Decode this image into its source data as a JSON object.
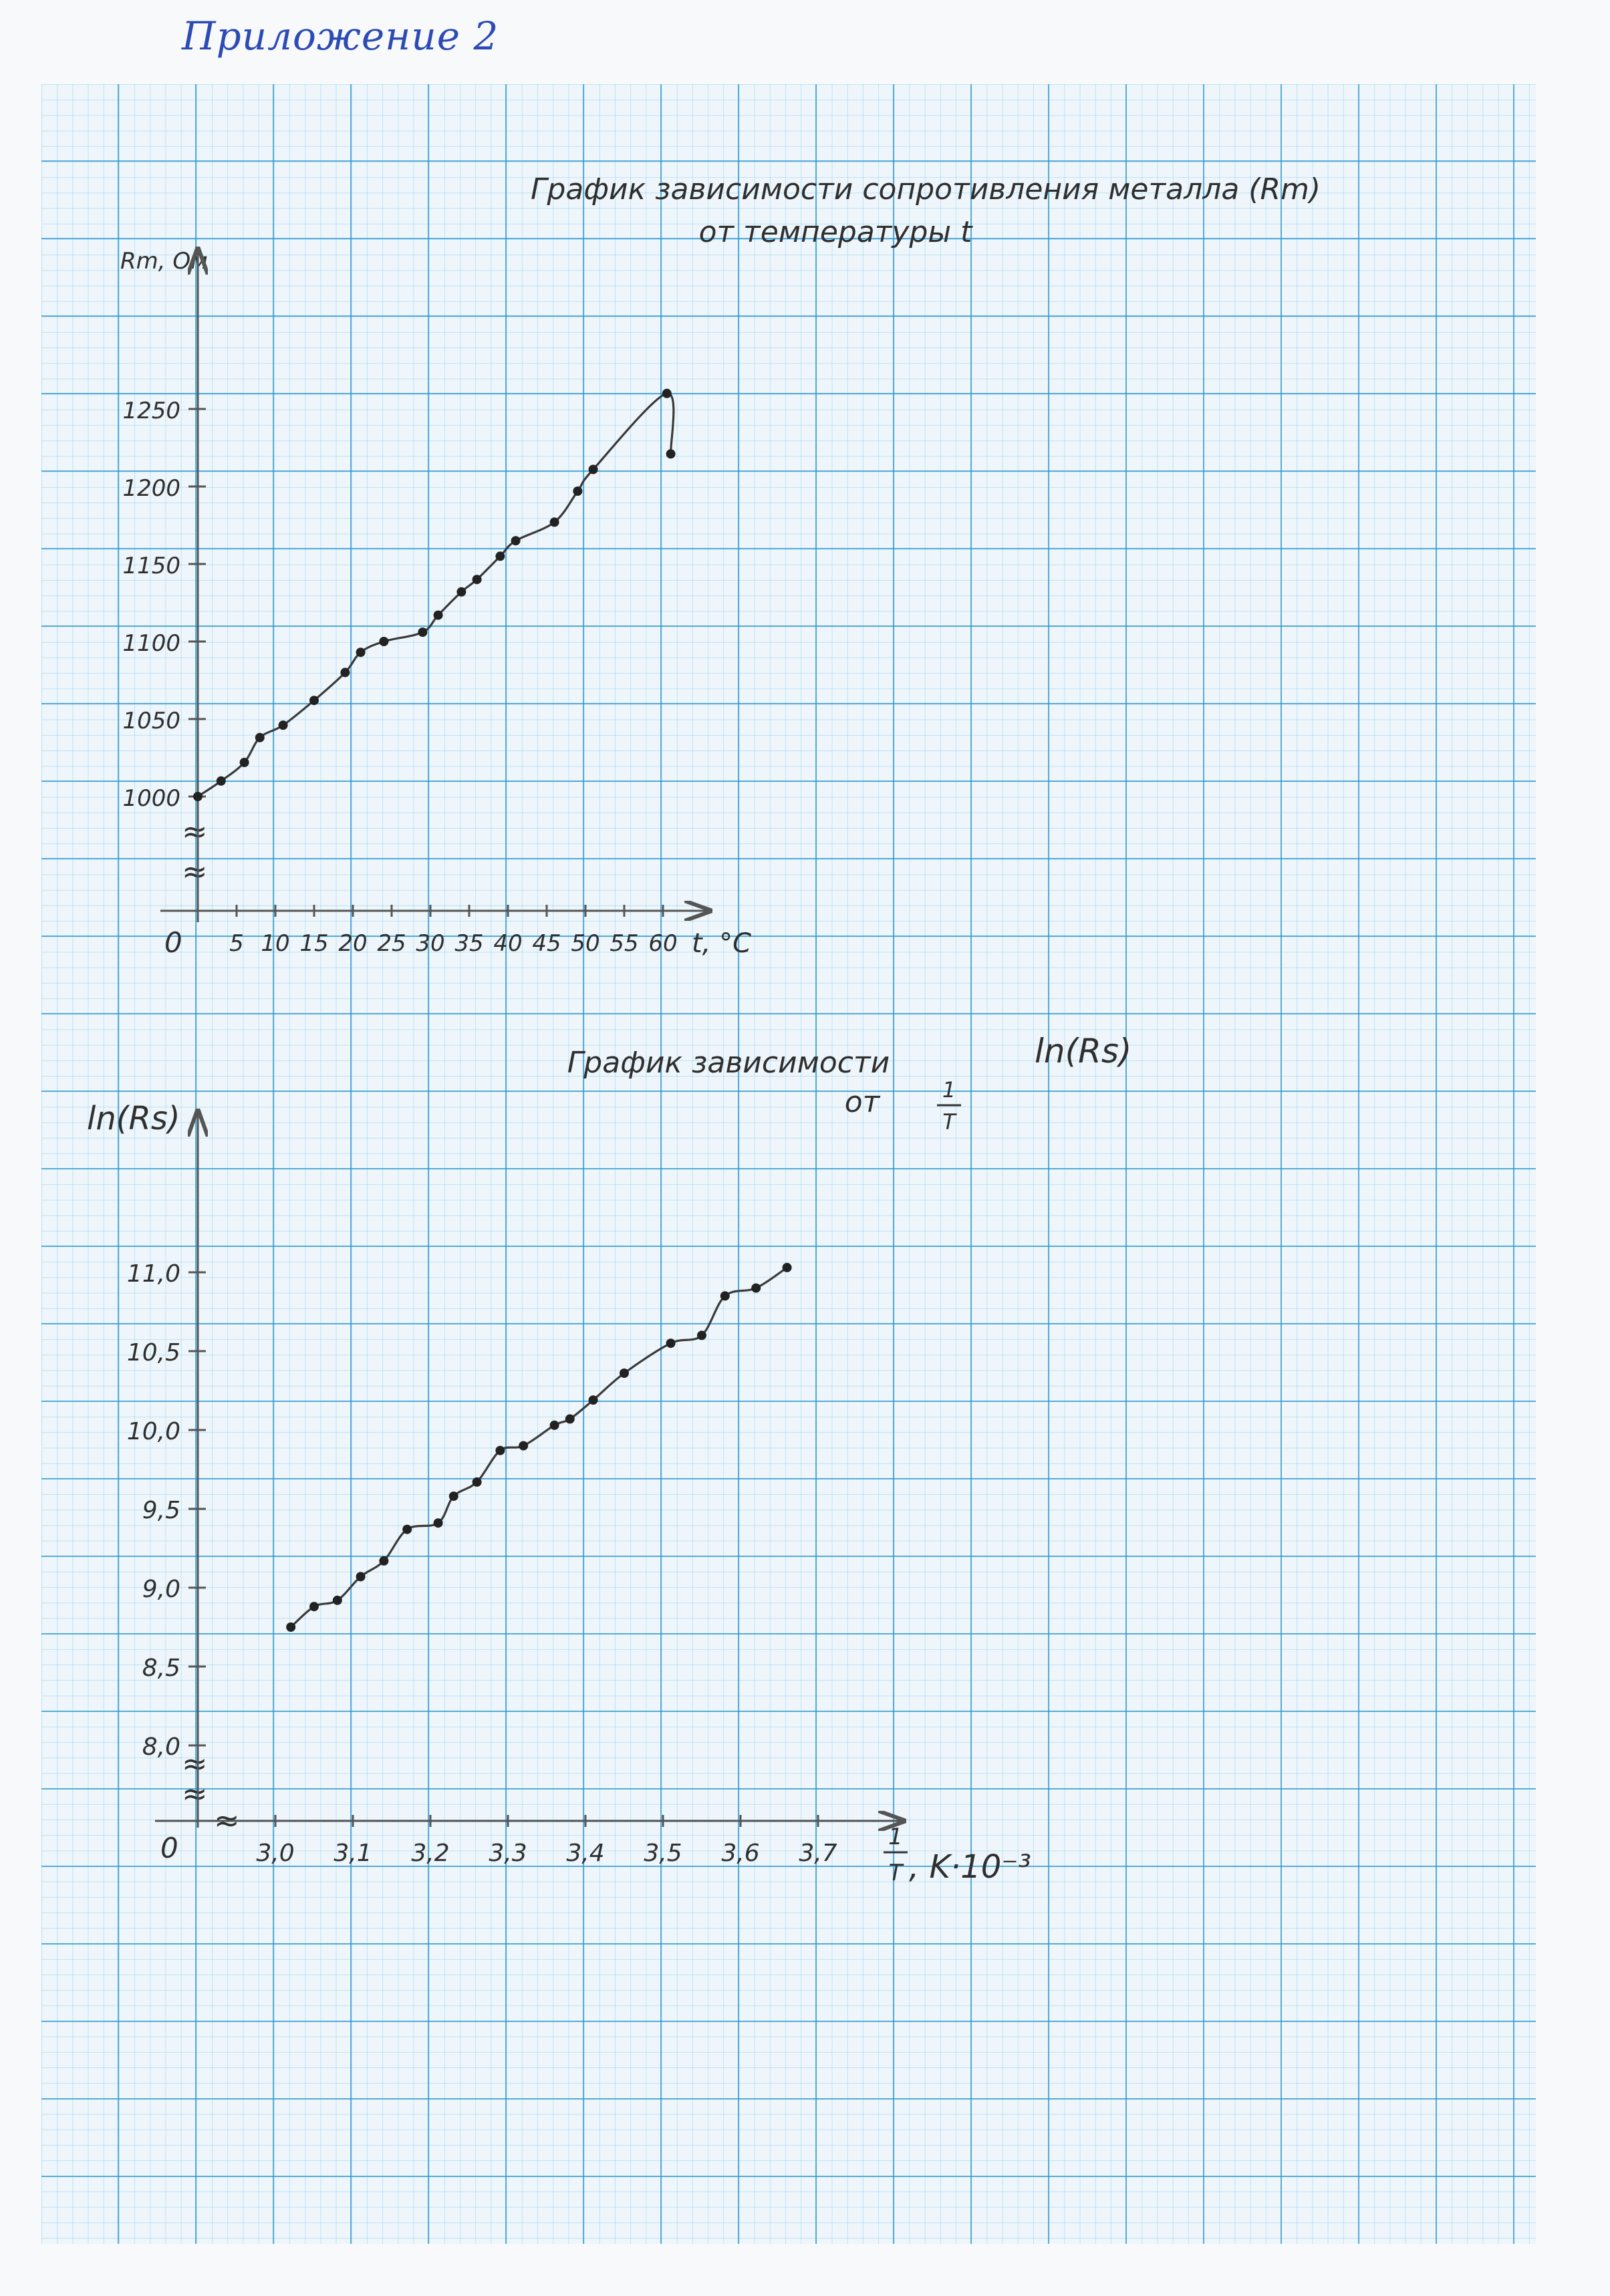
{
  "page": {
    "header": "Приложение 2"
  },
  "chart_data": [
    {
      "type": "line",
      "title_line1": "График зависимости сопротивления металла (Rm)",
      "title_line2": "от температуры t",
      "ylabel": "Rm, Ом",
      "xlabel": "t, °C",
      "origin_label": "0",
      "x_ticks": [
        "5",
        "10",
        "15",
        "20",
        "25",
        "30",
        "35",
        "40",
        "45",
        "50",
        "55",
        "60"
      ],
      "y_ticks": [
        "1000",
        "1050",
        "1100",
        "1150",
        "1200",
        "1250"
      ],
      "xlim": [
        0,
        65
      ],
      "ylim": [
        1000,
        1260
      ],
      "axis_break": "≈",
      "series": [
        {
          "x": [
            0,
            3,
            6,
            8,
            11,
            15,
            19,
            21,
            24,
            29,
            31,
            34,
            36,
            39,
            41,
            46,
            49,
            51,
            60.5,
            61
          ],
          "y": [
            1000,
            1010,
            1022,
            1038,
            1046,
            1062,
            1080,
            1093,
            1100,
            1106,
            1117,
            1132,
            1140,
            1155,
            1165,
            1177,
            1197,
            1211,
            1260,
            1221
          ]
        }
      ],
      "color": "#3a3a3a"
    },
    {
      "type": "line",
      "title_line1": "График зависимости",
      "title_var": "ln(Rs)",
      "title_line2": "от",
      "title_frac_num": "1",
      "title_frac_den": "T",
      "ylabel": "ln(Rs)",
      "xlabel_num": "1",
      "xlabel_den": "T",
      "xlabel_unit": ", K·10⁻³",
      "origin_label": "0",
      "x_ticks": [
        "3,0",
        "3,1",
        "3,2",
        "3,3",
        "3,4",
        "3,5",
        "3,6",
        "3,7"
      ],
      "y_ticks": [
        "8,0",
        "8,5",
        "9,0",
        "9,5",
        "10,0",
        "10,5",
        "11,0"
      ],
      "xlim": [
        3.0,
        3.7
      ],
      "ylim": [
        8.0,
        11.0
      ],
      "axis_break": "≈",
      "series": [
        {
          "x": [
            3.02,
            3.05,
            3.08,
            3.11,
            3.14,
            3.17,
            3.21,
            3.23,
            3.26,
            3.29,
            3.32,
            3.36,
            3.38,
            3.41,
            3.45,
            3.51,
            3.55,
            3.58,
            3.62,
            3.66
          ],
          "y": [
            8.75,
            8.88,
            8.92,
            9.07,
            9.17,
            9.37,
            9.41,
            9.58,
            9.67,
            9.87,
            9.9,
            10.03,
            10.07,
            10.19,
            10.36,
            10.55,
            10.6,
            10.85,
            10.9,
            11.03
          ]
        }
      ],
      "color": "#3a3a3a"
    }
  ]
}
